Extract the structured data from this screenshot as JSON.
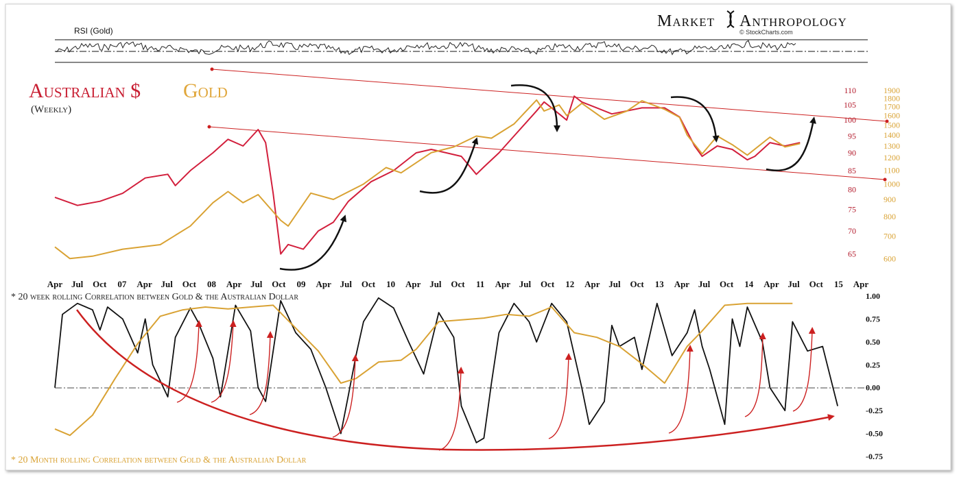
{
  "header": {
    "brand_left": "Market",
    "brand_right": "Anthropology",
    "brand_sub": "© StockCharts.com"
  },
  "colors": {
    "aud": "#d21f3c",
    "gold": "#d9a233",
    "black": "#111111",
    "trend_red": "#cc2020"
  },
  "chart_data": [
    {
      "id": "rsi",
      "type": "line",
      "title": "RSI (Gold)",
      "grid": false,
      "reference_lines": [
        "upper",
        "middle-dashed",
        "lower"
      ]
    },
    {
      "id": "price",
      "type": "line",
      "title": "Australian $ Gold",
      "title_parts": [
        "Australian $",
        "Gold"
      ],
      "subtitle": "(Weekly)",
      "x_tick_labels": [
        "Apr",
        "Jul",
        "Oct",
        "07",
        "Apr",
        "Jul",
        "Oct",
        "08",
        "Apr",
        "Jul",
        "Oct",
        "09",
        "Apr",
        "Jul",
        "Oct",
        "10",
        "Apr",
        "Jul",
        "Oct",
        "11",
        "Apr",
        "Jul",
        "Oct",
        "12",
        "Apr",
        "Jul",
        "Oct",
        "13",
        "Apr",
        "Jul",
        "Oct",
        "14",
        "Apr",
        "Jul",
        "Oct",
        "15",
        "Apr"
      ],
      "x_range": [
        "2006-04",
        "2015-04"
      ],
      "y_left_ticks": [
        110,
        105,
        100,
        95,
        90,
        85,
        80,
        75,
        70,
        65
      ],
      "y_left_range": [
        62,
        110
      ],
      "y_left_scale": "log",
      "y_right_ticks": [
        1900,
        1800,
        1700,
        1600,
        1500,
        1400,
        1300,
        1200,
        1100,
        1000,
        900,
        800,
        700,
        600
      ],
      "y_right_range": [
        560,
        1900
      ],
      "y_right_scale": "log",
      "series": [
        {
          "axis": "left",
          "color": "#d21f3c",
          "points": [
            [
              "2006-04",
              78
            ],
            [
              "2006-07",
              76
            ],
            [
              "2006-10",
              77
            ],
            [
              "2007-01",
              79
            ],
            [
              "2007-04",
              83
            ],
            [
              "2007-07",
              84
            ],
            [
              "2007-08",
              81
            ],
            [
              "2007-10",
              85
            ],
            [
              "2008-01",
              90
            ],
            [
              "2008-03",
              94
            ],
            [
              "2008-05",
              92
            ],
            [
              "2008-07",
              97
            ],
            [
              "2008-08",
              93
            ],
            [
              "2008-09",
              79
            ],
            [
              "2008-10",
              65
            ],
            [
              "2008-11",
              67
            ],
            [
              "2009-01",
              66
            ],
            [
              "2009-03",
              70
            ],
            [
              "2009-05",
              72
            ],
            [
              "2009-07",
              77
            ],
            [
              "2009-10",
              82
            ],
            [
              "2010-01",
              85
            ],
            [
              "2010-04",
              90
            ],
            [
              "2010-06",
              91
            ],
            [
              "2010-08",
              90
            ],
            [
              "2010-10",
              89
            ],
            [
              "2010-12",
              84
            ],
            [
              "2011-01",
              86
            ],
            [
              "2011-03",
              90
            ],
            [
              "2011-05",
              95
            ],
            [
              "2011-08",
              103
            ],
            [
              "2011-09",
              106
            ],
            [
              "2011-10",
              104
            ],
            [
              "2011-12",
              100
            ],
            [
              "2012-01",
              108
            ],
            [
              "2012-02",
              106
            ],
            [
              "2012-04",
              104
            ],
            [
              "2012-06",
              102
            ],
            [
              "2012-08",
              103
            ],
            [
              "2012-10",
              104
            ],
            [
              "2013-01",
              104
            ],
            [
              "2013-03",
              101
            ],
            [
              "2013-05",
              92
            ],
            [
              "2013-06",
              89
            ],
            [
              "2013-08",
              92
            ],
            [
              "2013-10",
              91
            ],
            [
              "2013-12",
              88
            ],
            [
              "2014-01",
              89
            ],
            [
              "2014-03",
              93
            ],
            [
              "2014-05",
              92
            ],
            [
              "2014-07",
              93
            ]
          ]
        },
        {
          "axis": "right",
          "color": "#d9a233",
          "points": [
            [
              "2006-04",
              650
            ],
            [
              "2006-06",
              600
            ],
            [
              "2006-09",
              610
            ],
            [
              "2007-01",
              640
            ],
            [
              "2007-06",
              660
            ],
            [
              "2007-10",
              750
            ],
            [
              "2008-01",
              880
            ],
            [
              "2008-03",
              950
            ],
            [
              "2008-05",
              880
            ],
            [
              "2008-07",
              930
            ],
            [
              "2008-10",
              780
            ],
            [
              "2008-11",
              750
            ],
            [
              "2009-02",
              940
            ],
            [
              "2009-05",
              900
            ],
            [
              "2009-09",
              1000
            ],
            [
              "2009-12",
              1120
            ],
            [
              "2010-02",
              1080
            ],
            [
              "2010-06",
              1240
            ],
            [
              "2010-09",
              1290
            ],
            [
              "2010-12",
              1390
            ],
            [
              "2011-02",
              1370
            ],
            [
              "2011-05",
              1510
            ],
            [
              "2011-08",
              1780
            ],
            [
              "2011-09",
              1650
            ],
            [
              "2011-11",
              1720
            ],
            [
              "2011-12",
              1600
            ],
            [
              "2012-02",
              1740
            ],
            [
              "2012-05",
              1560
            ],
            [
              "2012-08",
              1650
            ],
            [
              "2012-10",
              1770
            ],
            [
              "2013-01",
              1670
            ],
            [
              "2013-03",
              1580
            ],
            [
              "2013-04",
              1400
            ],
            [
              "2013-06",
              1230
            ],
            [
              "2013-08",
              1390
            ],
            [
              "2013-10",
              1310
            ],
            [
              "2013-12",
              1220
            ],
            [
              "2014-03",
              1380
            ],
            [
              "2014-05",
              1290
            ],
            [
              "2014-07",
              1320
            ]
          ]
        }
      ]
    },
    {
      "id": "correlation",
      "type": "line",
      "title": "* 20 week rolling Correlation between Gold & the Australian Dollar",
      "footnote": "* 20 Month rolling Correlation between Gold & the Australian Dollar",
      "y_ticks": [
        "1.00",
        "0.75",
        "0.50",
        "0.25",
        "0.00",
        "-0.25",
        "-0.50",
        "-0.75"
      ],
      "y_range": [
        -0.75,
        1.0
      ],
      "x_range": [
        "2006-04",
        "2015-04"
      ],
      "zero_line": "dash-dot",
      "series": [
        {
          "color": "#111111",
          "points": [
            [
              "2006-04",
              0.0
            ],
            [
              "2006-05",
              0.8
            ],
            [
              "2006-07",
              0.92
            ],
            [
              "2006-09",
              0.85
            ],
            [
              "2006-10",
              0.63
            ],
            [
              "2006-11",
              0.88
            ],
            [
              "2007-01",
              0.75
            ],
            [
              "2007-03",
              0.38
            ],
            [
              "2007-04",
              0.75
            ],
            [
              "2007-05",
              0.25
            ],
            [
              "2007-07",
              -0.1
            ],
            [
              "2007-08",
              0.55
            ],
            [
              "2007-10",
              0.87
            ],
            [
              "2007-11",
              0.72
            ],
            [
              "2008-01",
              0.32
            ],
            [
              "2008-02",
              -0.1
            ],
            [
              "2008-04",
              0.9
            ],
            [
              "2008-06",
              0.62
            ],
            [
              "2008-07",
              0.0
            ],
            [
              "2008-08",
              -0.15
            ],
            [
              "2008-10",
              0.95
            ],
            [
              "2008-12",
              0.6
            ],
            [
              "2009-02",
              0.42
            ],
            [
              "2009-04",
              0.0
            ],
            [
              "2009-06",
              -0.5
            ],
            [
              "2009-07",
              -0.08
            ],
            [
              "2009-08",
              0.35
            ],
            [
              "2009-09",
              0.72
            ],
            [
              "2009-11",
              0.98
            ],
            [
              "2010-01",
              0.87
            ],
            [
              "2010-03",
              0.5
            ],
            [
              "2010-05",
              0.15
            ],
            [
              "2010-07",
              0.82
            ],
            [
              "2010-09",
              0.55
            ],
            [
              "2010-10",
              -0.2
            ],
            [
              "2010-12",
              -0.6
            ],
            [
              "2011-01",
              -0.55
            ],
            [
              "2011-02",
              0.05
            ],
            [
              "2011-03",
              0.6
            ],
            [
              "2011-05",
              0.92
            ],
            [
              "2011-07",
              0.72
            ],
            [
              "2011-08",
              0.5
            ],
            [
              "2011-10",
              0.92
            ],
            [
              "2011-12",
              0.72
            ],
            [
              "2012-02",
              0.0
            ],
            [
              "2012-03",
              -0.4
            ],
            [
              "2012-05",
              -0.15
            ],
            [
              "2012-06",
              0.68
            ],
            [
              "2012-07",
              0.45
            ],
            [
              "2012-09",
              0.55
            ],
            [
              "2012-10",
              0.2
            ],
            [
              "2012-12",
              0.92
            ],
            [
              "2013-02",
              0.35
            ],
            [
              "2013-04",
              0.6
            ],
            [
              "2013-05",
              0.85
            ],
            [
              "2013-06",
              0.45
            ],
            [
              "2013-07",
              0.2
            ],
            [
              "2013-08",
              -0.1
            ],
            [
              "2013-09",
              -0.4
            ],
            [
              "2013-10",
              0.75
            ],
            [
              "2013-11",
              0.45
            ],
            [
              "2013-12",
              0.88
            ],
            [
              "2014-02",
              0.5
            ],
            [
              "2014-03",
              0.0
            ],
            [
              "2014-05",
              -0.25
            ],
            [
              "2014-06",
              0.72
            ],
            [
              "2014-08",
              0.4
            ],
            [
              "2014-10",
              0.45
            ],
            [
              "2014-12",
              -0.2
            ]
          ]
        },
        {
          "color": "#d9a233",
          "points": [
            [
              "2006-04",
              -0.45
            ],
            [
              "2006-06",
              -0.52
            ],
            [
              "2006-09",
              -0.3
            ],
            [
              "2006-12",
              0.1
            ],
            [
              "2007-03",
              0.48
            ],
            [
              "2007-06",
              0.78
            ],
            [
              "2007-09",
              0.85
            ],
            [
              "2007-12",
              0.88
            ],
            [
              "2008-03",
              0.86
            ],
            [
              "2008-06",
              0.88
            ],
            [
              "2008-09",
              0.9
            ],
            [
              "2008-12",
              0.65
            ],
            [
              "2009-03",
              0.4
            ],
            [
              "2009-06",
              0.05
            ],
            [
              "2009-08",
              0.1
            ],
            [
              "2009-11",
              0.28
            ],
            [
              "2010-02",
              0.3
            ],
            [
              "2010-04",
              0.42
            ],
            [
              "2010-07",
              0.72
            ],
            [
              "2010-10",
              0.74
            ],
            [
              "2011-01",
              0.76
            ],
            [
              "2011-04",
              0.8
            ],
            [
              "2011-07",
              0.78
            ],
            [
              "2011-10",
              0.88
            ],
            [
              "2012-01",
              0.6
            ],
            [
              "2012-04",
              0.55
            ],
            [
              "2012-07",
              0.45
            ],
            [
              "2012-10",
              0.26
            ],
            [
              "2013-01",
              0.05
            ],
            [
              "2013-04",
              0.45
            ],
            [
              "2013-06",
              0.62
            ],
            [
              "2013-09",
              0.9
            ],
            [
              "2013-12",
              0.92
            ],
            [
              "2014-03",
              0.92
            ],
            [
              "2014-06",
              0.92
            ]
          ]
        }
      ]
    }
  ]
}
